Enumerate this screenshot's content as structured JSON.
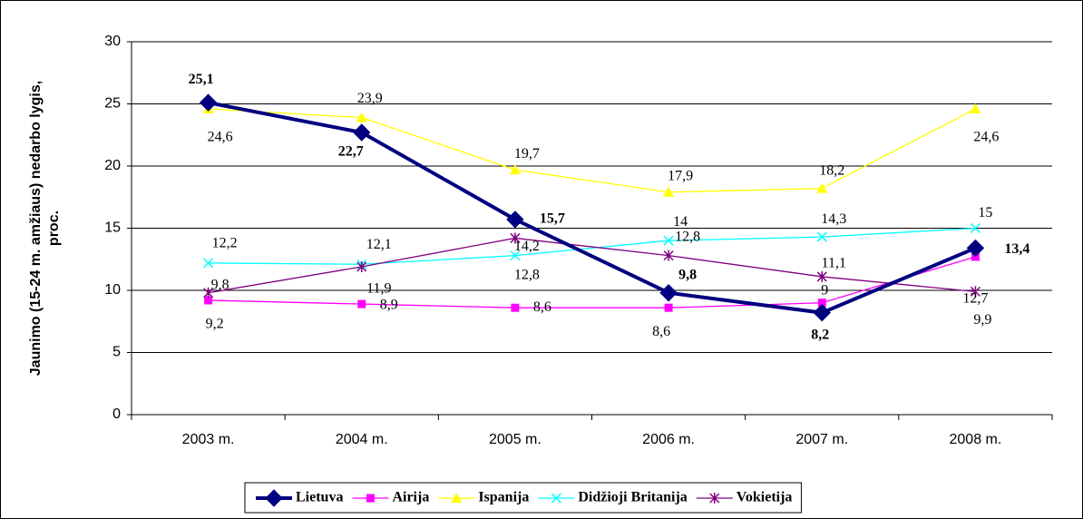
{
  "chart_data": {
    "type": "line",
    "y_label": [
      "Jaunimo (15-24 m. amžiaus) nedarbo lygis,",
      "proc."
    ],
    "categories": [
      "2003 m.",
      "2004 m.",
      "2005 m.",
      "2006 m.",
      "2007 m.",
      "2008 m."
    ],
    "ylim": [
      0,
      30
    ],
    "yticks": [
      0,
      5,
      10,
      15,
      20,
      25,
      30
    ],
    "grid": true,
    "legend": "bottom",
    "series": [
      {
        "name": "Lietuva",
        "color": "#000080",
        "marker": "diamond",
        "values": [
          25.1,
          22.7,
          15.7,
          9.8,
          8.2,
          13.4
        ],
        "value_labels": [
          "25,1",
          "22,7",
          "15,7",
          "9,8",
          "8,2",
          "13,4"
        ]
      },
      {
        "name": "Airija",
        "color": "#ff00ff",
        "marker": "square",
        "values": [
          9.2,
          8.9,
          8.6,
          8.6,
          9,
          12.7
        ],
        "value_labels": [
          "9,2",
          "8,9",
          "8,6",
          "8,6",
          "9",
          "12,7"
        ]
      },
      {
        "name": "Ispanija",
        "color": "#ffff00",
        "marker": "triangle",
        "values": [
          24.6,
          23.9,
          19.7,
          17.9,
          18.2,
          24.6
        ],
        "value_labels": [
          "24,6",
          "23,9",
          "19,7",
          "17,9",
          "18,2",
          "24,6"
        ]
      },
      {
        "name": "Didžioji Britanija",
        "color": "#00ffff",
        "marker": "x",
        "values": [
          12.2,
          12.1,
          12.8,
          14,
          14.3,
          15
        ],
        "value_labels": [
          "12,2",
          "12,1",
          "12,8",
          "14",
          "14,3",
          "15"
        ]
      },
      {
        "name": "Vokietija",
        "color": "#800080",
        "marker": "star",
        "values": [
          9.8,
          11.9,
          14.2,
          12.8,
          11.1,
          9.9
        ],
        "value_labels": [
          "9,8",
          "11,9",
          "14,2",
          "12,8",
          "11,1",
          "9,9"
        ]
      }
    ]
  }
}
